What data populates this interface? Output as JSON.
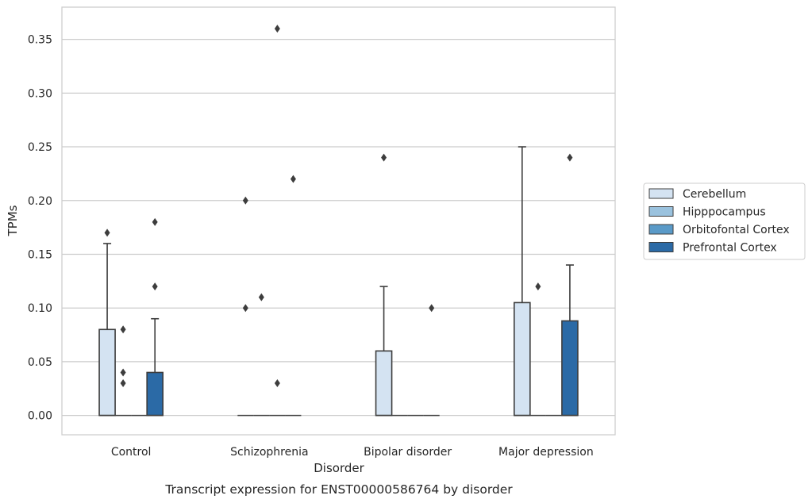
{
  "chart_data": {
    "type": "box",
    "xlabel": "Disorder",
    "ylabel": "TPMs",
    "caption": "Transcript expression for ENST00000586764 by disorder",
    "categories": [
      "Control",
      "Schizophrenia",
      "Bipolar disorder",
      "Major depression"
    ],
    "ylim": [
      -0.018,
      0.38
    ],
    "yticks": [
      0.0,
      0.05,
      0.1,
      0.15,
      0.2,
      0.25,
      0.3,
      0.35
    ],
    "ytick_labels": [
      "0.00",
      "0.05",
      "0.10",
      "0.15",
      "0.20",
      "0.25",
      "0.30",
      "0.35"
    ],
    "grid": true,
    "legend_position": "right",
    "series": [
      {
        "name": "Cerebellum",
        "color": "#d4e3f2",
        "boxes": [
          {
            "category": "Control",
            "q1": 0,
            "median": 0,
            "q3": 0.08,
            "whisker_low": 0,
            "whisker_high": 0.16,
            "outliers": [
              0.17
            ]
          },
          {
            "category": "Schizophrenia",
            "q1": 0,
            "median": 0,
            "q3": 0,
            "whisker_low": 0,
            "whisker_high": 0,
            "outliers": [
              0.2,
              0.1
            ]
          },
          {
            "category": "Bipolar disorder",
            "q1": 0,
            "median": 0,
            "q3": 0.06,
            "whisker_low": 0,
            "whisker_high": 0.12,
            "outliers": [
              0.24
            ]
          },
          {
            "category": "Major depression",
            "q1": 0,
            "median": 0,
            "q3": 0.105,
            "whisker_low": 0,
            "whisker_high": 0.25,
            "outliers": []
          }
        ]
      },
      {
        "name": "Hipppocampus",
        "color": "#9ac2de",
        "boxes": [
          {
            "category": "Control",
            "q1": 0,
            "median": 0,
            "q3": 0,
            "whisker_low": 0,
            "whisker_high": 0,
            "outliers": [
              0.08,
              0.04,
              0.03
            ]
          },
          {
            "category": "Schizophrenia",
            "q1": 0,
            "median": 0,
            "q3": 0,
            "whisker_low": 0,
            "whisker_high": 0,
            "outliers": [
              0.11
            ]
          },
          {
            "category": "Bipolar disorder",
            "q1": 0,
            "median": 0,
            "q3": 0,
            "whisker_low": 0,
            "whisker_high": 0,
            "outliers": []
          },
          {
            "category": "Major depression",
            "q1": 0,
            "median": 0,
            "q3": 0,
            "whisker_low": 0,
            "whisker_high": 0,
            "outliers": [
              0.12
            ]
          }
        ]
      },
      {
        "name": "Orbitofontal Cortex",
        "color": "#5a9ac8",
        "boxes": [
          {
            "category": "Control",
            "q1": 0,
            "median": 0,
            "q3": 0,
            "whisker_low": 0,
            "whisker_high": 0,
            "outliers": []
          },
          {
            "category": "Schizophrenia",
            "q1": 0,
            "median": 0,
            "q3": 0,
            "whisker_low": 0,
            "whisker_high": 0,
            "outliers": [
              0.36,
              0.03
            ]
          },
          {
            "category": "Bipolar disorder",
            "q1": 0,
            "median": 0,
            "q3": 0,
            "whisker_low": 0,
            "whisker_high": 0,
            "outliers": []
          },
          {
            "category": "Major depression",
            "q1": 0,
            "median": 0,
            "q3": 0,
            "whisker_low": 0,
            "whisker_high": 0,
            "outliers": []
          }
        ]
      },
      {
        "name": "Prefrontal Cortex",
        "color": "#2b6aa6",
        "boxes": [
          {
            "category": "Control",
            "q1": 0,
            "median": 0,
            "q3": 0.04,
            "whisker_low": 0,
            "whisker_high": 0.09,
            "outliers": [
              0.18,
              0.12
            ]
          },
          {
            "category": "Schizophrenia",
            "q1": 0,
            "median": 0,
            "q3": 0,
            "whisker_low": 0,
            "whisker_high": 0,
            "outliers": [
              0.22
            ]
          },
          {
            "category": "Bipolar disorder",
            "q1": 0,
            "median": 0,
            "q3": 0,
            "whisker_low": 0,
            "whisker_high": 0,
            "outliers": [
              0.1
            ]
          },
          {
            "category": "Major depression",
            "q1": 0,
            "median": 0,
            "q3": 0.088,
            "whisker_low": 0,
            "whisker_high": 0.14,
            "outliers": [
              0.24
            ]
          }
        ]
      }
    ]
  }
}
